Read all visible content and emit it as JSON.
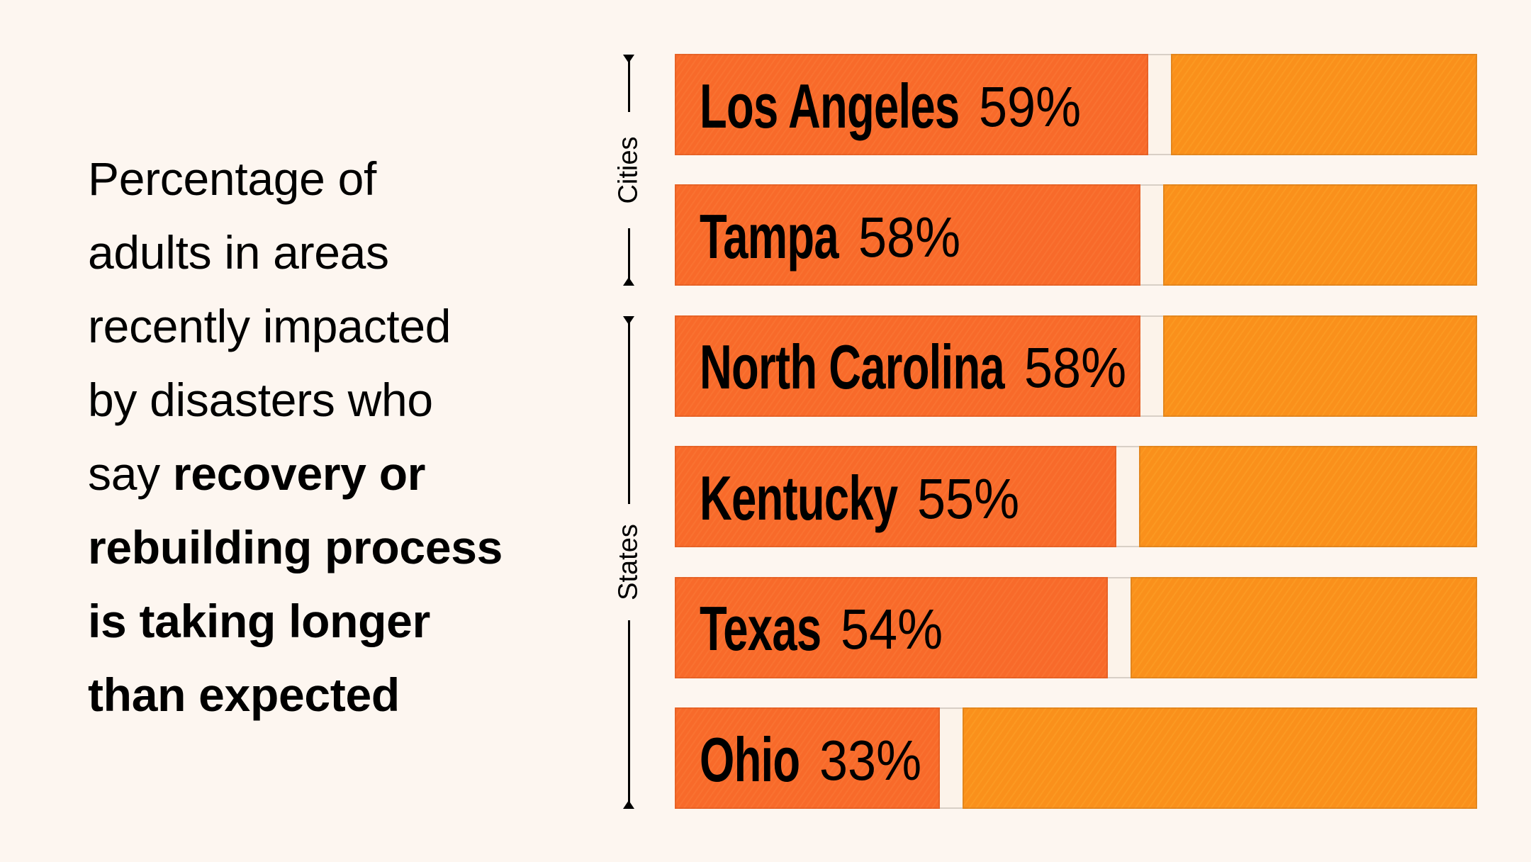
{
  "description": {
    "lines": [
      {
        "normal": "Percentage of",
        "bold": ""
      },
      {
        "normal": "adults in areas",
        "bold": ""
      },
      {
        "normal": "recently impacted",
        "bold": ""
      },
      {
        "normal": "by disasters who",
        "bold": ""
      },
      {
        "normal": "say ",
        "bold": "recovery or"
      },
      {
        "normal": "",
        "bold": "rebuilding process"
      },
      {
        "normal": "",
        "bold": "is taking longer"
      },
      {
        "normal": "",
        "bold": "than expected"
      }
    ]
  },
  "colors": {
    "background": "#FDF6F0",
    "value_fill": "#F86A2A",
    "remainder_fill": "#FA901B",
    "text": "#000000"
  },
  "chart_data": {
    "type": "bar",
    "orientation": "horizontal",
    "stacked_to_100": true,
    "title": "Percentage of adults in areas recently impacted by disasters who say recovery or rebuilding process is taking longer than expected",
    "categories": [
      "Los Angeles",
      "Tampa",
      "North Carolina",
      "Kentucky",
      "Texas",
      "Ohio"
    ],
    "values": [
      59,
      58,
      58,
      55,
      54,
      33
    ],
    "value_labels": [
      "59%",
      "58%",
      "58%",
      "55%",
      "54%",
      "33%"
    ],
    "unit": "%",
    "xlim": [
      0,
      100
    ],
    "groups": [
      {
        "label": "Cities",
        "categories": [
          "Los Angeles",
          "Tampa"
        ]
      },
      {
        "label": "States",
        "categories": [
          "North Carolina",
          "Kentucky",
          "Texas",
          "Ohio"
        ]
      }
    ],
    "grid": false,
    "legend": "none"
  }
}
